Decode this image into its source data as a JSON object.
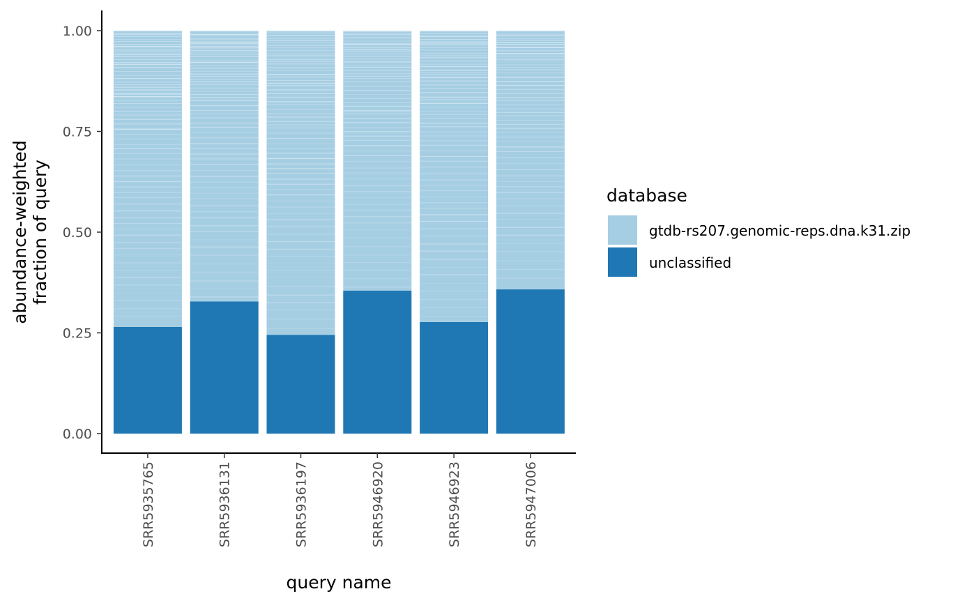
{
  "chart_data": {
    "type": "bar",
    "stacked": true,
    "title": "",
    "xlabel": "query name",
    "ylabel_lines": [
      "abundance-weighted",
      "fraction of query"
    ],
    "ylim": [
      0,
      1
    ],
    "yticks": [
      "0.00",
      "0.25",
      "0.50",
      "0.75",
      "1.00"
    ],
    "ytick_values": [
      0,
      0.25,
      0.5,
      0.75,
      1
    ],
    "categories": [
      "SRR5935765",
      "SRR5936131",
      "SRR5936197",
      "SRR5946920",
      "SRR5946923",
      "SRR5947006"
    ],
    "series": [
      {
        "name": "unclassified",
        "color": "#1f78b4",
        "values": [
          0.265,
          0.328,
          0.245,
          0.355,
          0.277,
          0.358
        ]
      },
      {
        "name": "gtdb-rs207.genomic-reps.dna.k31.zip",
        "color": "#a6cee3",
        "values": [
          0.735,
          0.672,
          0.755,
          0.645,
          0.723,
          0.642
        ]
      }
    ],
    "legend": {
      "title": "database",
      "position": "right",
      "items": [
        {
          "label": "gtdb-rs207.genomic-reps.dna.k31.zip",
          "color": "#a6cee3"
        },
        {
          "label": "unclassified",
          "color": "#1f78b4"
        }
      ]
    }
  }
}
